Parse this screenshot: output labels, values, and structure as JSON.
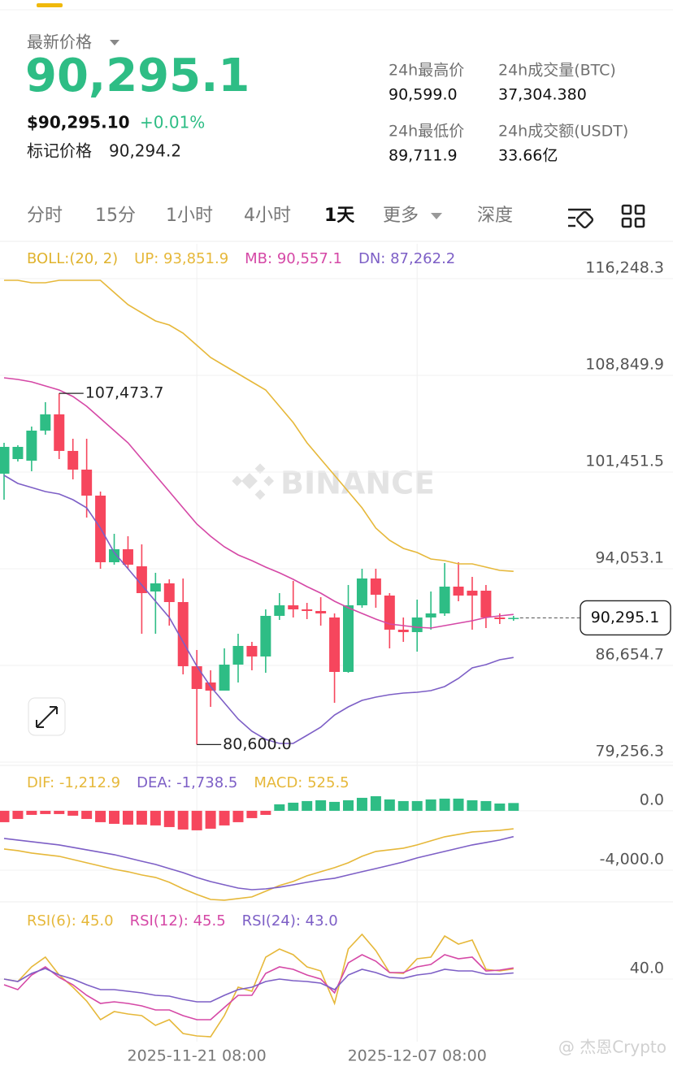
{
  "header": {
    "price_label": "最新价格",
    "price": "90,295.1",
    "usd_price": "$90,295.10",
    "change": "+0.01%",
    "mark_label": "标记价格",
    "mark_price": "90,294.2",
    "stats": [
      {
        "label": "24h最高价",
        "value": "90,599.0"
      },
      {
        "label": "24h成交量(BTC)",
        "value": "37,304.380"
      },
      {
        "label": "24h最低价",
        "value": "89,711.9"
      },
      {
        "label": "24h成交额(USDT)",
        "value": "33.66亿"
      }
    ]
  },
  "tabs": [
    "分时",
    "15分",
    "1小时",
    "4小时",
    "1天",
    "更多",
    "深度"
  ],
  "watermark": "BINANCE",
  "credit": "@ 杰恩Crypto",
  "chart_data": [
    {
      "type": "candlestick",
      "indicator": "BOLL:(20, 2)",
      "indicator_color": "#e0b32e",
      "categories": [
        null,
        null,
        null,
        null,
        null,
        null,
        null,
        null,
        null,
        null,
        null,
        null,
        null,
        null,
        "2025-11-21 08:00",
        null,
        null,
        null,
        null,
        null,
        null,
        null,
        null,
        null,
        null,
        null,
        null,
        null,
        null,
        null,
        "2025-12-07 08:00",
        null,
        null,
        null,
        null,
        null,
        null,
        null
      ],
      "open": [
        101328,
        102447,
        102323,
        104623,
        105866,
        103069,
        101639,
        99649,
        94551,
        95546,
        94241,
        92313,
        92935,
        91505,
        86594,
        85350,
        84728,
        86718,
        88148,
        87340,
        90448,
        91256,
        90945,
        90821,
        90324,
        86158,
        91256,
        93308,
        92002,
        89391,
        89205,
        90324,
        90635,
        92686,
        92375,
        92375,
        90324,
        90262
      ],
      "high": [
        103690,
        103504,
        104934,
        106799,
        107473.7,
        104001,
        104001,
        99960,
        96727,
        96541,
        95919,
        93743,
        93246,
        93308,
        87837,
        86283,
        87961,
        89080,
        88459,
        90945,
        92189,
        93121,
        91443,
        91878,
        90635,
        92811,
        94054,
        94054,
        92189,
        90324,
        91692,
        92313,
        94489,
        94551,
        93432,
        92811,
        90635,
        90448
      ],
      "low": [
        99338,
        102260,
        101514,
        104312,
        102447,
        100893,
        97971,
        94054,
        94365,
        94054,
        89080,
        89080,
        89702,
        85972,
        80600,
        83485,
        84728,
        85350,
        86283,
        86096,
        90137,
        90324,
        90199,
        89702,
        83796,
        86096,
        91070,
        91070,
        87961,
        88459,
        87713,
        89391,
        90448,
        91567,
        89391,
        89516,
        89826,
        90075
      ],
      "close": [
        103379,
        103379,
        104623,
        105866,
        103069,
        101639,
        99649,
        94551,
        95546,
        94365,
        92189,
        92935,
        91505,
        86594,
        84853,
        84728,
        86718,
        88148,
        87340,
        90448,
        91256,
        90945,
        90821,
        90635,
        86158,
        91256,
        93308,
        92065,
        89391,
        89205,
        90324,
        90635,
        92686,
        92002,
        92002,
        90324,
        90199,
        90295.1
      ],
      "up_color": "#2ebd85",
      "down_color": "#f6465d",
      "series": [
        {
          "name": "UP: 93,851.9",
          "color": "#e6b83a",
          "values": [
            116124,
            116124,
            115938,
            115938,
            116124,
            116124,
            116124,
            116124,
            115192,
            114259,
            113638,
            113016,
            112705,
            112083,
            111151,
            110218,
            109596,
            108975,
            108353,
            107731,
            106488,
            105245,
            103690,
            102447,
            101204,
            99960,
            98717,
            97162,
            96230,
            95608,
            95297,
            94800,
            94676,
            94427,
            94427,
            94178,
            93930,
            93851.9
          ]
        },
        {
          "name": "MB: 90,557.1",
          "color": "#d548a6",
          "values": [
            108664,
            108540,
            108353,
            108042,
            107731,
            107234,
            106488,
            105555,
            104623,
            103690,
            102447,
            101204,
            99960,
            98717,
            97473,
            96541,
            95733,
            95111,
            94676,
            94178,
            93743,
            93246,
            92686,
            92189,
            91567,
            91070,
            90635,
            90199,
            89826,
            89702,
            89578,
            89516,
            89702,
            89889,
            90075,
            90324,
            90448,
            90557.1
          ]
        },
        {
          "name": "DN: 87,262.2",
          "color": "#7d5fc6",
          "values": [
            101204,
            100582,
            100271,
            99960,
            99774,
            99338,
            98717,
            97162,
            95297,
            94054,
            92811,
            91567,
            90324,
            88459,
            86594,
            85039,
            83796,
            82553,
            81620,
            80998,
            80687,
            80687,
            81309,
            81931,
            82863,
            83485,
            83982,
            84231,
            84418,
            84542,
            84604,
            84728,
            85039,
            85661,
            86469,
            86718,
            87091,
            87262.2
          ]
        }
      ],
      "annotations": [
        {
          "label": "107,473.7",
          "value": 107473.7
        },
        {
          "label": "80,600.0",
          "value": 80600
        }
      ],
      "last_price": {
        "value": 90295.1,
        "label": "90,295.1"
      },
      "ylim": [
        79132,
        118922
      ],
      "yticks": [
        {
          "value": 116248.3,
          "label": "116,248.3"
        },
        {
          "value": 108849.9,
          "label": "108,849.9"
        },
        {
          "value": 101451.5,
          "label": "101,451.5"
        },
        {
          "value": 94053.1,
          "label": "94,053.1"
        },
        {
          "value": 86654.7,
          "label": "86,654.7"
        },
        {
          "value": 79256.3,
          "label": "79,256.3"
        }
      ],
      "grid": true
    },
    {
      "type": "macd",
      "up_color": "#2ebd85",
      "down_color": "#f6465d",
      "series": [
        {
          "name": "DIF: -1,212.9",
          "color": "#e6b83a",
          "values": [
            -2575,
            -2685,
            -2849,
            -2959,
            -3068,
            -3288,
            -3507,
            -3726,
            -3945,
            -4110,
            -4329,
            -4493,
            -4822,
            -5260,
            -5644,
            -5973,
            -6027,
            -5918,
            -5808,
            -5425,
            -5041,
            -4767,
            -4384,
            -4110,
            -3836,
            -3507,
            -3068,
            -2740,
            -2630,
            -2521,
            -2302,
            -2028,
            -1753,
            -1589,
            -1425,
            -1370,
            -1315,
            -1212.9
          ]
        },
        {
          "name": "DEA: -1,738.5",
          "color": "#7d5fc6",
          "values": [
            -1863,
            -1973,
            -2082,
            -2192,
            -2302,
            -2466,
            -2630,
            -2795,
            -2959,
            -3178,
            -3398,
            -3617,
            -3891,
            -4165,
            -4494,
            -4768,
            -4987,
            -5206,
            -5316,
            -5261,
            -5151,
            -4987,
            -4822,
            -4658,
            -4548,
            -4329,
            -4110,
            -3891,
            -3672,
            -3452,
            -3178,
            -2959,
            -2740,
            -2521,
            -2302,
            -2137,
            -1973,
            -1738.5
          ]
        },
        {
          "name": "MACD: 525.5",
          "color": "#e6b83a",
          "style": "histogram",
          "values": [
            -767,
            -548,
            -274,
            -219,
            -219,
            -329,
            -548,
            -767,
            -877,
            -932,
            -932,
            -986,
            -1096,
            -1260,
            -1315,
            -1206,
            -986,
            -767,
            -493,
            -274,
            438,
            548,
            658,
            712,
            603,
            712,
            877,
            986,
            767,
            658,
            658,
            767,
            822,
            822,
            712,
            658,
            493,
            525.5
          ]
        }
      ],
      "ylim": [
        -6140,
        2900
      ],
      "yticks": [
        {
          "value": 0,
          "label": "0.0"
        },
        {
          "value": -4000,
          "label": "-4,000.0"
        }
      ],
      "grid": true
    },
    {
      "type": "line",
      "series": [
        {
          "name": "RSI(6): 45.0",
          "color": "#e6b83a",
          "values": [
            40,
            38.8,
            46,
            50.8,
            42,
            36,
            29.2,
            20,
            24,
            22.8,
            22,
            17.2,
            20,
            13.2,
            12,
            11.6,
            22,
            36,
            34,
            50.8,
            54.8,
            52,
            46,
            44,
            28,
            54.8,
            62,
            54,
            43.2,
            42.8,
            50,
            50.8,
            61.2,
            57.2,
            59.2,
            44.8,
            44,
            45
          ]
        },
        {
          "name": "RSI(12): 45.5",
          "color": "#d548a6",
          "values": [
            37.2,
            34.8,
            42,
            46,
            40.8,
            37.2,
            32,
            28,
            28.8,
            28,
            26.8,
            24.8,
            24.8,
            22,
            20,
            20,
            26,
            32,
            32,
            42.8,
            46,
            44.8,
            42,
            40,
            33.2,
            48,
            52,
            48.8,
            43.2,
            43.2,
            46,
            47.2,
            52,
            50,
            50.8,
            44,
            44.4,
            45.5
          ]
        },
        {
          "name": "RSI(24): 43.0",
          "color": "#7d5fc6",
          "values": [
            40,
            38.8,
            42.8,
            45.2,
            42,
            40,
            37.2,
            34.8,
            34.8,
            34,
            33.2,
            32,
            31.6,
            30,
            28.8,
            28.8,
            32,
            34.8,
            36,
            38.8,
            40,
            39.2,
            38.8,
            38,
            34.8,
            42,
            44.8,
            43.2,
            40.8,
            40.4,
            42,
            42.8,
            44.8,
            44,
            44,
            42.4,
            42.4,
            43
          ]
        }
      ],
      "ylim": [
        10,
        76
      ],
      "yticks": [
        {
          "value": 40,
          "label": "40.0"
        }
      ],
      "grid": true
    }
  ]
}
